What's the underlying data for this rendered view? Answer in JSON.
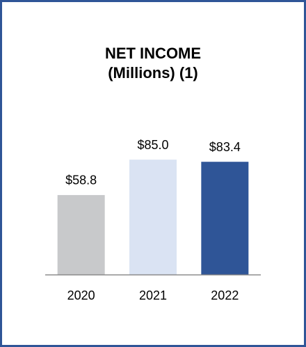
{
  "chart_data": {
    "type": "bar",
    "title": "NET INCOME",
    "subtitle": "(Millions) (1)",
    "categories": [
      "2020",
      "2021",
      "2022"
    ],
    "values": [
      58.8,
      85.0,
      83.4
    ],
    "value_labels": [
      "$58.8",
      "$85.0",
      "$83.4"
    ],
    "colors": [
      "#c8c9cb",
      "#dae3f3",
      "#2f5597"
    ]
  }
}
